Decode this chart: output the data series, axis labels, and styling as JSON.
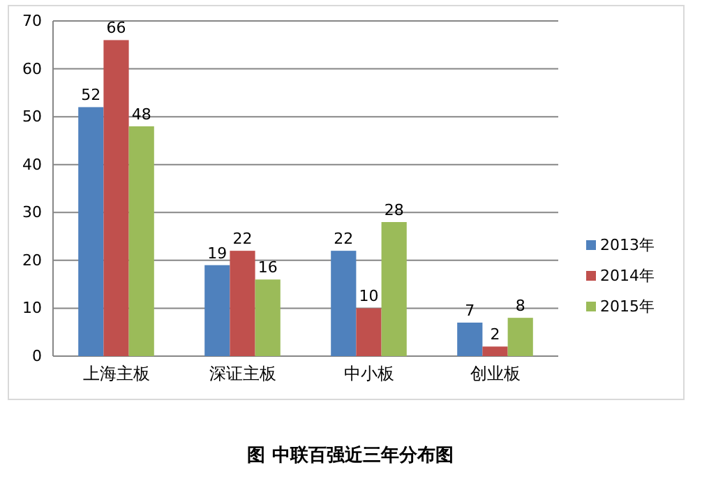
{
  "chart_data": {
    "type": "bar",
    "title": "图 中联百强近三年分布图",
    "categories": [
      "上海主板",
      "深证主板",
      "中小板",
      "创业板"
    ],
    "series": [
      {
        "name": "2013年",
        "color": "#4f81bd",
        "values": [
          52,
          19,
          22,
          7
        ]
      },
      {
        "name": "2014年",
        "color": "#c0504d",
        "values": [
          66,
          22,
          10,
          2
        ]
      },
      {
        "name": "2015年",
        "color": "#9bbb59",
        "values": [
          48,
          16,
          28,
          8
        ]
      }
    ],
    "ylim": [
      0,
      70
    ],
    "yticks": [
      0,
      10,
      20,
      30,
      40,
      50,
      60,
      70
    ],
    "grid": "y",
    "legend": "right",
    "data_labels": true
  }
}
